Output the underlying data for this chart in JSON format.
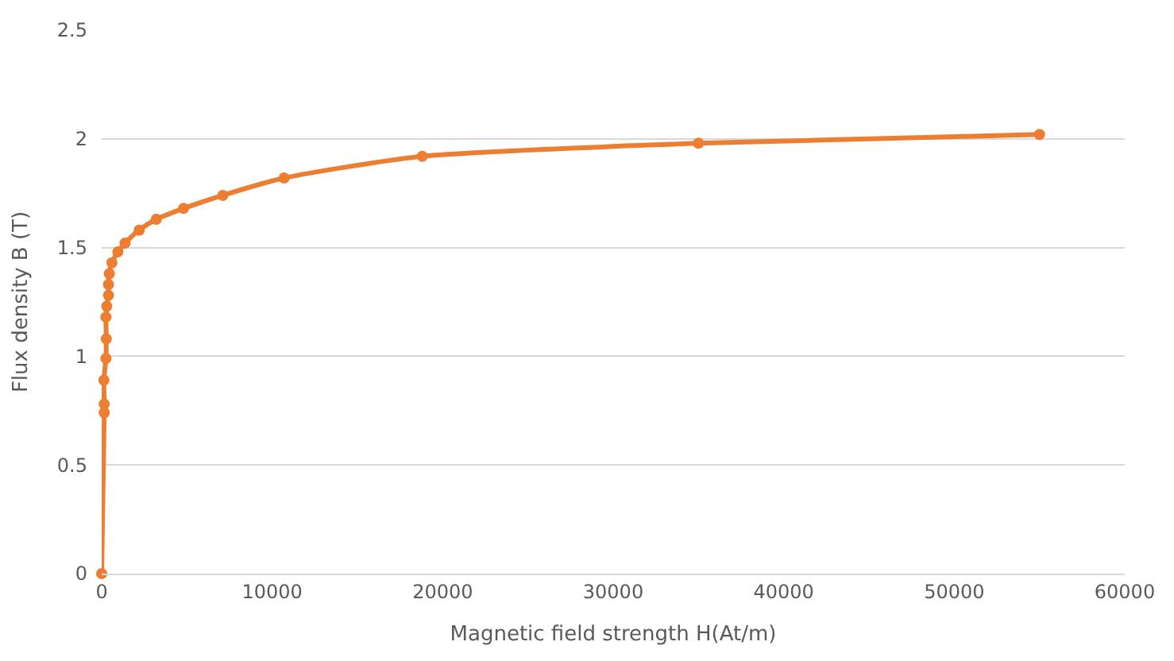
{
  "chart_data": {
    "type": "line",
    "xlabel": "Magnetic field strength H(At/m)",
    "ylabel": "Flux density B (T)",
    "x": [
      0,
      150,
      150,
      130,
      250,
      270,
      250,
      300,
      400,
      400,
      450,
      600,
      950,
      1370,
      2200,
      3200,
      4800,
      7100,
      10700,
      18800,
      35000,
      55000
    ],
    "series": [
      {
        "color": "#ed7d31",
        "values": [
          0,
          0.74,
          0.78,
          0.89,
          0.99,
          1.08,
          1.18,
          1.23,
          1.28,
          1.33,
          1.38,
          1.43,
          1.48,
          1.52,
          1.58,
          1.63,
          1.68,
          1.74,
          1.82,
          1.92,
          1.98,
          2.02
        ]
      }
    ],
    "xlim": [
      0,
      60000
    ],
    "xticks": [
      0,
      10000,
      20000,
      30000,
      40000,
      50000,
      60000
    ],
    "ylim": [
      0,
      2.5
    ],
    "yticks": [
      0,
      0.5,
      1,
      1.5,
      2,
      2.5
    ],
    "grid": "y",
    "marker": "circle",
    "line_style": "solid",
    "legend": false
  }
}
